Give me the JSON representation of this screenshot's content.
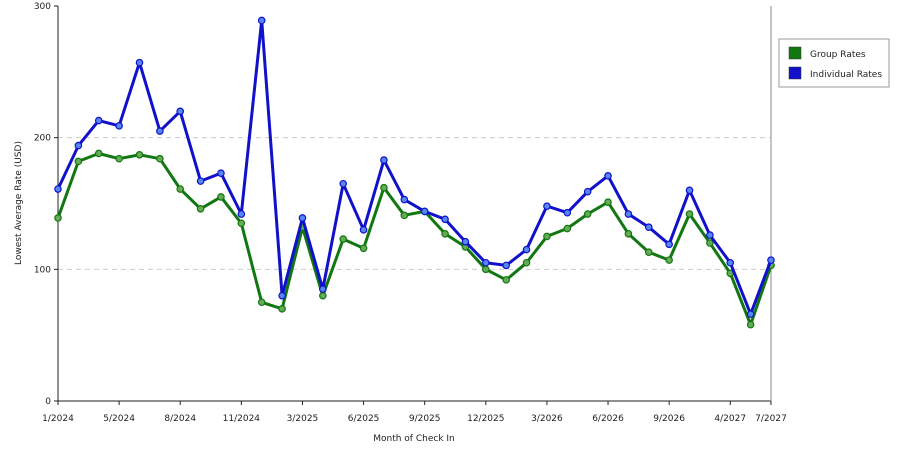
{
  "chart_data": {
    "type": "line",
    "xlabel": "Month of Check In",
    "ylabel": "Lowest Average Rate (USD)",
    "ylim": [
      0,
      300
    ],
    "yticks": [
      "0",
      "100",
      "200",
      "300"
    ],
    "grid": "horizontal dashed at 100 and 200",
    "legend_placement": "right",
    "xtick_labels": [
      "1/2024",
      "5/2024",
      "8/2024",
      "11/2024",
      "3/2025",
      "6/2025",
      "9/2025",
      "12/2025",
      "3/2026",
      "6/2026",
      "9/2026",
      "4/2027",
      "7/2027"
    ],
    "series": [
      {
        "name": "Group Rates",
        "color": "#117711",
        "values": [
          139,
          182,
          188,
          184,
          187,
          184,
          161,
          146,
          155,
          135,
          75,
          70,
          132,
          80,
          123,
          116,
          162,
          141,
          144,
          127,
          117,
          100,
          92,
          105,
          125,
          131,
          142,
          151,
          127,
          113,
          107,
          142,
          120,
          97,
          58,
          103
        ]
      },
      {
        "name": "Individual Rates",
        "color": "#1111cc",
        "values": [
          161,
          194,
          213,
          209,
          257,
          205,
          220,
          167,
          173,
          142,
          289,
          80,
          139,
          85,
          165,
          130,
          183,
          153,
          144,
          138,
          121,
          105,
          103,
          115,
          148,
          143,
          159,
          171,
          142,
          132,
          119,
          160,
          126,
          105,
          66,
          107
        ]
      }
    ]
  }
}
